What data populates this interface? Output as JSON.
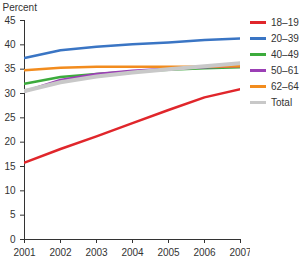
{
  "chart_data": {
    "type": "line",
    "y_label": "Percent",
    "x": [
      2001,
      2002,
      2003,
      2004,
      2005,
      2006,
      2007
    ],
    "xlim": [
      2001,
      2007
    ],
    "xticks": [
      2001,
      2002,
      2003,
      2004,
      2005,
      2006,
      2007
    ],
    "ylim": [
      0,
      45
    ],
    "yticks": [
      0,
      5,
      10,
      15,
      20,
      25,
      30,
      35,
      40,
      45
    ],
    "grid": false,
    "legend": "top-right",
    "series": [
      {
        "name": "18–19",
        "color": "#e0262b",
        "values": [
          15.8,
          18.6,
          21.2,
          23.9,
          26.6,
          29.2,
          30.9
        ]
      },
      {
        "name": "20–39",
        "color": "#3a75c4",
        "values": [
          37.3,
          38.9,
          39.6,
          40.1,
          40.5,
          41.0,
          41.3
        ]
      },
      {
        "name": "40–49",
        "color": "#3cab3c",
        "values": [
          32.0,
          33.4,
          34.0,
          34.5,
          34.9,
          35.2,
          35.4
        ]
      },
      {
        "name": "50–61",
        "color": "#9b3fb5",
        "values": [
          30.4,
          32.8,
          34.0,
          34.7,
          35.1,
          35.4,
          35.6
        ]
      },
      {
        "name": "62–64",
        "color": "#f28c1e",
        "values": [
          34.8,
          35.3,
          35.5,
          35.5,
          35.5,
          35.5,
          35.6
        ]
      },
      {
        "name": "Total",
        "color": "#c8c8c8",
        "values": [
          30.5,
          32.3,
          33.5,
          34.3,
          35.0,
          35.6,
          36.2
        ]
      }
    ]
  }
}
